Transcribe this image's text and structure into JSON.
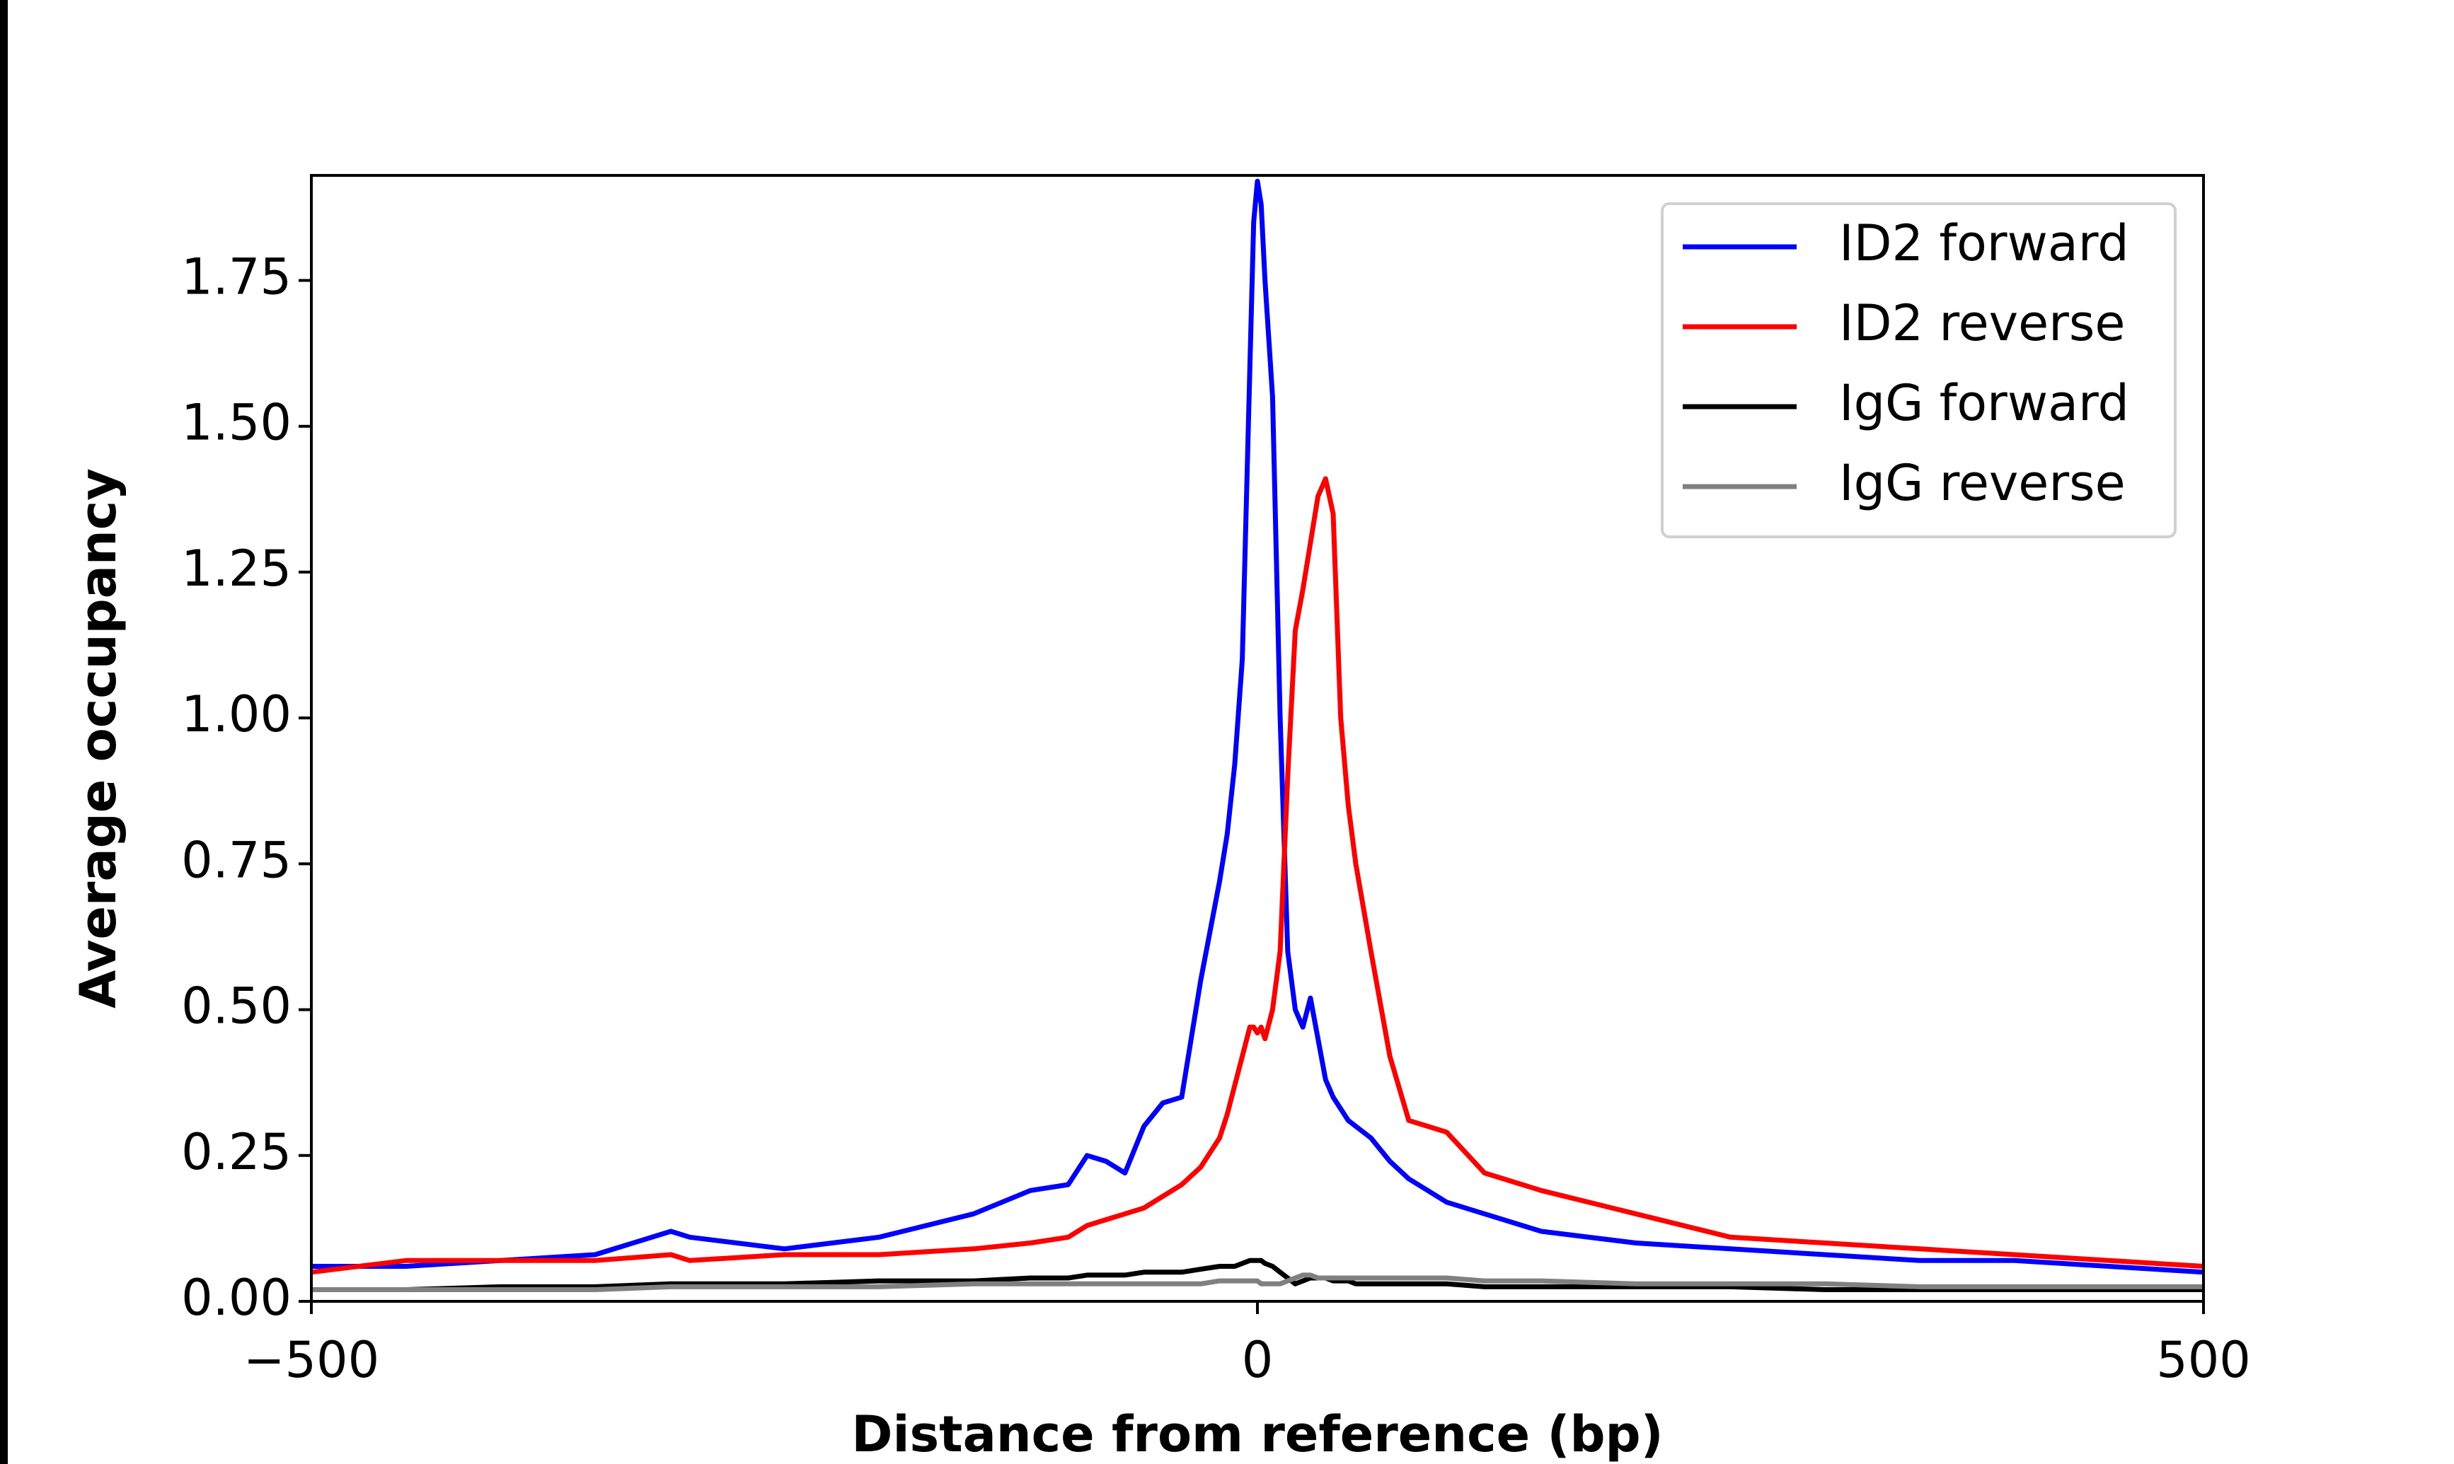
{
  "chart_data": {
    "type": "line",
    "x_label": "Distance from reference (bp)",
    "y_label": "Average occupancy",
    "xlim": [
      -500,
      500
    ],
    "ylim": [
      0,
      1.93
    ],
    "xticks": [
      {
        "value": -500,
        "label": "−500"
      },
      0,
      500
    ],
    "yticks": [
      {
        "value": 0,
        "label": "0.00"
      },
      {
        "value": 0.25,
        "label": "0.25"
      },
      {
        "value": 0.5,
        "label": "0.50"
      },
      {
        "value": 0.75,
        "label": "0.75"
      },
      {
        "value": 1,
        "label": "1.00"
      },
      {
        "value": 1.25,
        "label": "1.25"
      },
      {
        "value": 1.5,
        "label": "1.50"
      },
      {
        "value": 1.75,
        "label": "1.75"
      }
    ],
    "grid": false,
    "legend": "upper right",
    "x": [
      -500,
      -450,
      -400,
      -350,
      -310,
      -300,
      -250,
      -200,
      -150,
      -120,
      -100,
      -90,
      -80,
      -70,
      -60,
      -50,
      -40,
      -30,
      -20,
      -16,
      -12,
      -8,
      -4,
      -2,
      0,
      2,
      4,
      8,
      12,
      16,
      20,
      24,
      28,
      32,
      36,
      40,
      44,
      48,
      52,
      60,
      70,
      80,
      90,
      100,
      120,
      150,
      200,
      250,
      300,
      350,
      400,
      450,
      500
    ],
    "series": [
      {
        "name": "ID2 forward",
        "color": "#0000ff",
        "values": [
          0.06,
          0.06,
          0.07,
          0.08,
          0.12,
          0.11,
          0.09,
          0.11,
          0.15,
          0.19,
          0.2,
          0.25,
          0.24,
          0.22,
          0.3,
          0.34,
          0.35,
          0.55,
          0.72,
          0.8,
          0.92,
          1.1,
          1.6,
          1.85,
          1.92,
          1.88,
          1.75,
          1.55,
          1.0,
          0.6,
          0.5,
          0.47,
          0.52,
          0.45,
          0.38,
          0.35,
          0.33,
          0.31,
          0.3,
          0.28,
          0.24,
          0.21,
          0.19,
          0.17,
          0.15,
          0.12,
          0.1,
          0.09,
          0.08,
          0.07,
          0.07,
          0.06,
          0.05
        ]
      },
      {
        "name": "ID2 reverse",
        "color": "#ff0000",
        "values": [
          0.05,
          0.07,
          0.07,
          0.07,
          0.08,
          0.07,
          0.08,
          0.08,
          0.09,
          0.1,
          0.11,
          0.13,
          0.14,
          0.15,
          0.16,
          0.18,
          0.2,
          0.23,
          0.28,
          0.32,
          0.37,
          0.42,
          0.47,
          0.47,
          0.46,
          0.47,
          0.45,
          0.5,
          0.6,
          0.9,
          1.15,
          1.22,
          1.3,
          1.38,
          1.41,
          1.35,
          1.0,
          0.85,
          0.75,
          0.6,
          0.42,
          0.31,
          0.3,
          0.29,
          0.22,
          0.19,
          0.15,
          0.11,
          0.1,
          0.09,
          0.08,
          0.07,
          0.06
        ]
      },
      {
        "name": "IgG forward",
        "color": "#000000",
        "values": [
          0.02,
          0.02,
          0.025,
          0.025,
          0.03,
          0.03,
          0.03,
          0.035,
          0.035,
          0.04,
          0.04,
          0.045,
          0.045,
          0.045,
          0.05,
          0.05,
          0.05,
          0.055,
          0.06,
          0.06,
          0.06,
          0.065,
          0.07,
          0.07,
          0.07,
          0.07,
          0.065,
          0.06,
          0.05,
          0.04,
          0.03,
          0.035,
          0.04,
          0.04,
          0.04,
          0.035,
          0.035,
          0.035,
          0.03,
          0.03,
          0.03,
          0.03,
          0.03,
          0.03,
          0.025,
          0.025,
          0.025,
          0.025,
          0.02,
          0.02,
          0.02,
          0.02,
          0.02
        ]
      },
      {
        "name": "IgG reverse",
        "color": "#808080",
        "values": [
          0.02,
          0.02,
          0.02,
          0.02,
          0.025,
          0.025,
          0.025,
          0.025,
          0.03,
          0.03,
          0.03,
          0.03,
          0.03,
          0.03,
          0.03,
          0.03,
          0.03,
          0.03,
          0.035,
          0.035,
          0.035,
          0.035,
          0.035,
          0.035,
          0.035,
          0.03,
          0.03,
          0.03,
          0.03,
          0.035,
          0.04,
          0.045,
          0.045,
          0.04,
          0.04,
          0.04,
          0.04,
          0.04,
          0.04,
          0.04,
          0.04,
          0.04,
          0.04,
          0.04,
          0.035,
          0.035,
          0.03,
          0.03,
          0.03,
          0.025,
          0.025,
          0.025,
          0.025
        ]
      }
    ]
  }
}
